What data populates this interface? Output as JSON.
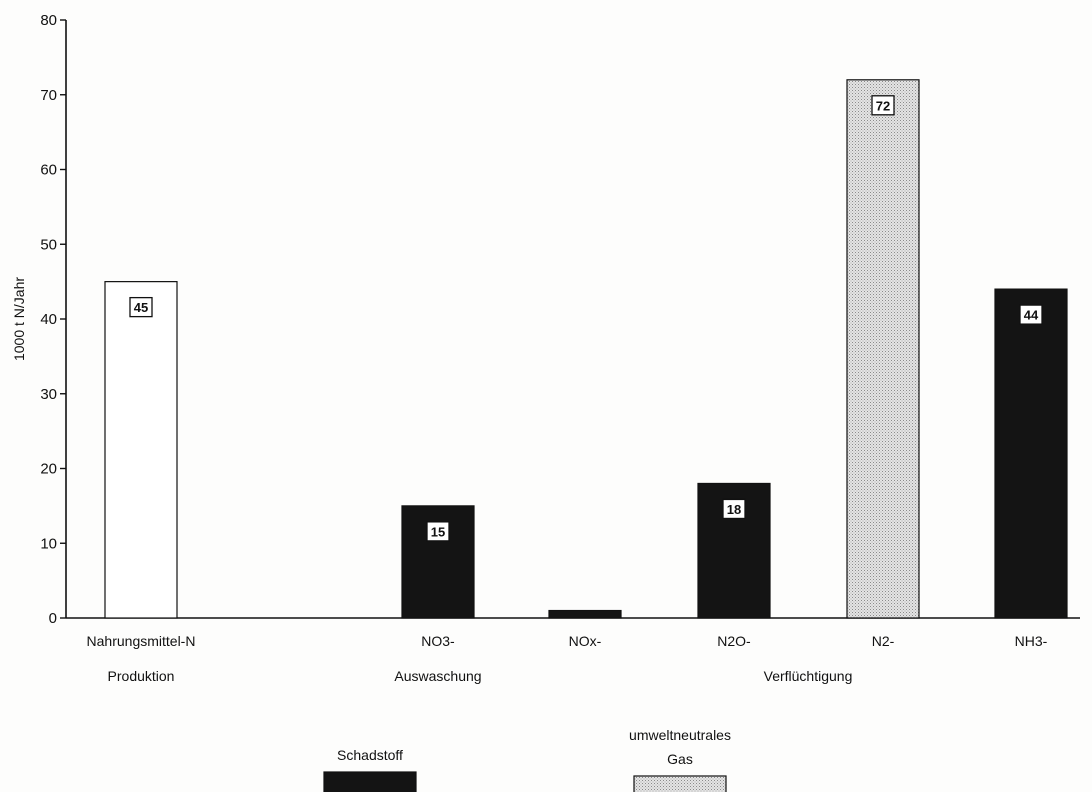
{
  "chart_data": {
    "type": "bar",
    "ylabel": "1000 t N/Jahr",
    "ylim": [
      0,
      80
    ],
    "yticks": [
      0,
      10,
      20,
      30,
      40,
      50,
      60,
      70,
      80
    ],
    "categories": [
      "Nahrungsmittel-N",
      "NO3-",
      "NOx-",
      "N2O-",
      "N2-",
      "NH3-"
    ],
    "values": [
      45,
      15,
      1,
      18,
      72,
      44
    ],
    "data_labels": [
      "45",
      "15",
      "",
      "18",
      "72",
      "44"
    ],
    "fill_types": [
      "open",
      "dark",
      "dark",
      "dark",
      "dotted",
      "dark"
    ],
    "group_labels": [
      {
        "text": "Produktion",
        "under": [
          0
        ]
      },
      {
        "text": "Auswaschung",
        "under": [
          1
        ]
      },
      {
        "text": "Verflüchtigung",
        "under": [
          2,
          5
        ]
      }
    ],
    "legend": [
      {
        "label": "Schadstoff",
        "fill": "dark"
      },
      {
        "label": "umweltneutrales Gas",
        "fill": "dotted"
      }
    ],
    "colors": {
      "dark": "#141414",
      "open": "#ffffff",
      "dotted": "#d8d8d8",
      "axis": "#111111"
    },
    "grid": false,
    "legend_position": "bottom-center"
  }
}
